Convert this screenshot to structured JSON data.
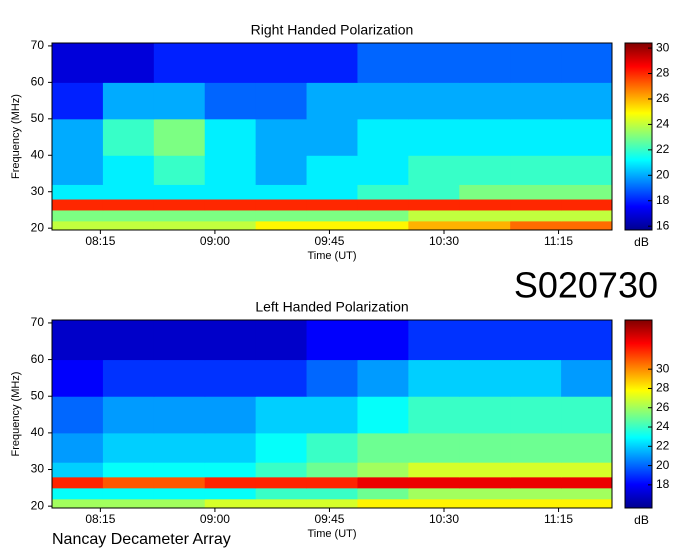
{
  "page": {
    "code": "S020730",
    "footer": "Nancay Decameter Array"
  },
  "chart_data": [
    {
      "type": "heatmap",
      "title": "Right Handed Polarization",
      "xlabel": "Time (UT)",
      "ylabel": "Frequency (MHz)",
      "colormap": "jet",
      "clabel": "dB",
      "xlim": [
        476,
        696
      ],
      "xticks": [
        {
          "value": 495,
          "label": "08:15"
        },
        {
          "value": 540,
          "label": "09:00"
        },
        {
          "value": 585,
          "label": "09:45"
        },
        {
          "value": 630,
          "label": "10:30"
        },
        {
          "value": 675,
          "label": "11:15"
        }
      ],
      "ylim": [
        19.5,
        70.8
      ],
      "yticks": [
        20,
        30,
        40,
        50,
        60,
        70
      ],
      "xbins": [
        476,
        496,
        516,
        536,
        556,
        576,
        596,
        616,
        636,
        656,
        676,
        696
      ],
      "ybins": [
        19.5,
        22,
        25,
        28,
        32,
        40,
        50,
        60,
        70.8
      ],
      "z": [
        [
          24,
          24,
          24,
          24,
          25,
          25,
          25,
          26,
          26,
          27,
          27
        ],
        [
          23,
          23,
          23,
          23,
          23,
          23,
          23,
          24,
          24,
          24,
          24
        ],
        [
          28,
          28,
          28,
          28,
          28,
          28,
          28,
          28,
          28,
          28,
          28
        ],
        [
          21,
          21,
          21,
          21,
          21,
          21,
          22,
          22,
          23,
          23,
          23
        ],
        [
          20,
          21,
          22,
          21,
          20,
          21,
          21,
          22,
          22,
          22,
          22
        ],
        [
          20,
          22,
          23,
          21,
          20,
          20,
          21,
          21,
          21,
          21,
          21
        ],
        [
          18,
          20,
          20,
          19,
          19,
          20,
          20,
          20,
          20,
          20,
          20
        ],
        [
          17,
          17,
          18,
          18,
          18,
          18,
          19,
          19,
          19,
          19,
          19
        ]
      ],
      "clim": [
        15.7,
        30.4
      ],
      "cticks": [
        16,
        18,
        20,
        22,
        24,
        26,
        28,
        30
      ]
    },
    {
      "type": "heatmap",
      "title": "Left Handed Polarization",
      "xlabel": "Time (UT)",
      "ylabel": "Frequency (MHz)",
      "colormap": "jet",
      "clabel": "dB",
      "xlim": [
        476,
        696
      ],
      "xticks": [
        {
          "value": 495,
          "label": "08:15"
        },
        {
          "value": 540,
          "label": "09:00"
        },
        {
          "value": 585,
          "label": "09:45"
        },
        {
          "value": 630,
          "label": "10:30"
        },
        {
          "value": 675,
          "label": "11:15"
        }
      ],
      "ylim": [
        19.5,
        70.8
      ],
      "yticks": [
        20,
        30,
        40,
        50,
        60,
        70
      ],
      "xbins": [
        476,
        496,
        516,
        536,
        556,
        576,
        596,
        616,
        636,
        656,
        676,
        696
      ],
      "ybins": [
        19.5,
        22,
        25,
        28,
        32,
        40,
        50,
        60,
        70.8
      ],
      "z": [
        [
          26,
          26,
          26,
          27,
          27,
          27,
          28,
          28,
          28,
          28,
          28
        ],
        [
          23,
          23,
          23,
          23,
          24,
          24,
          25,
          26,
          26,
          26,
          26
        ],
        [
          32,
          31,
          31,
          32,
          32,
          32,
          33,
          33,
          33,
          33,
          33
        ],
        [
          22,
          23,
          23,
          23,
          24,
          25,
          26,
          27,
          27,
          27,
          27
        ],
        [
          21,
          22,
          22,
          22,
          23,
          24,
          25,
          25,
          25,
          25,
          25
        ],
        [
          20,
          21,
          21,
          21,
          22,
          22,
          23,
          24,
          24,
          24,
          24
        ],
        [
          18,
          19,
          19,
          19,
          19,
          20,
          21,
          22,
          22,
          22,
          21
        ],
        [
          17,
          17,
          17,
          17,
          17,
          18,
          18,
          19,
          19,
          19,
          19
        ]
      ],
      "clim": [
        15.6,
        35.1
      ],
      "cticks": [
        18,
        20,
        22,
        24,
        26,
        28,
        30
      ]
    }
  ]
}
